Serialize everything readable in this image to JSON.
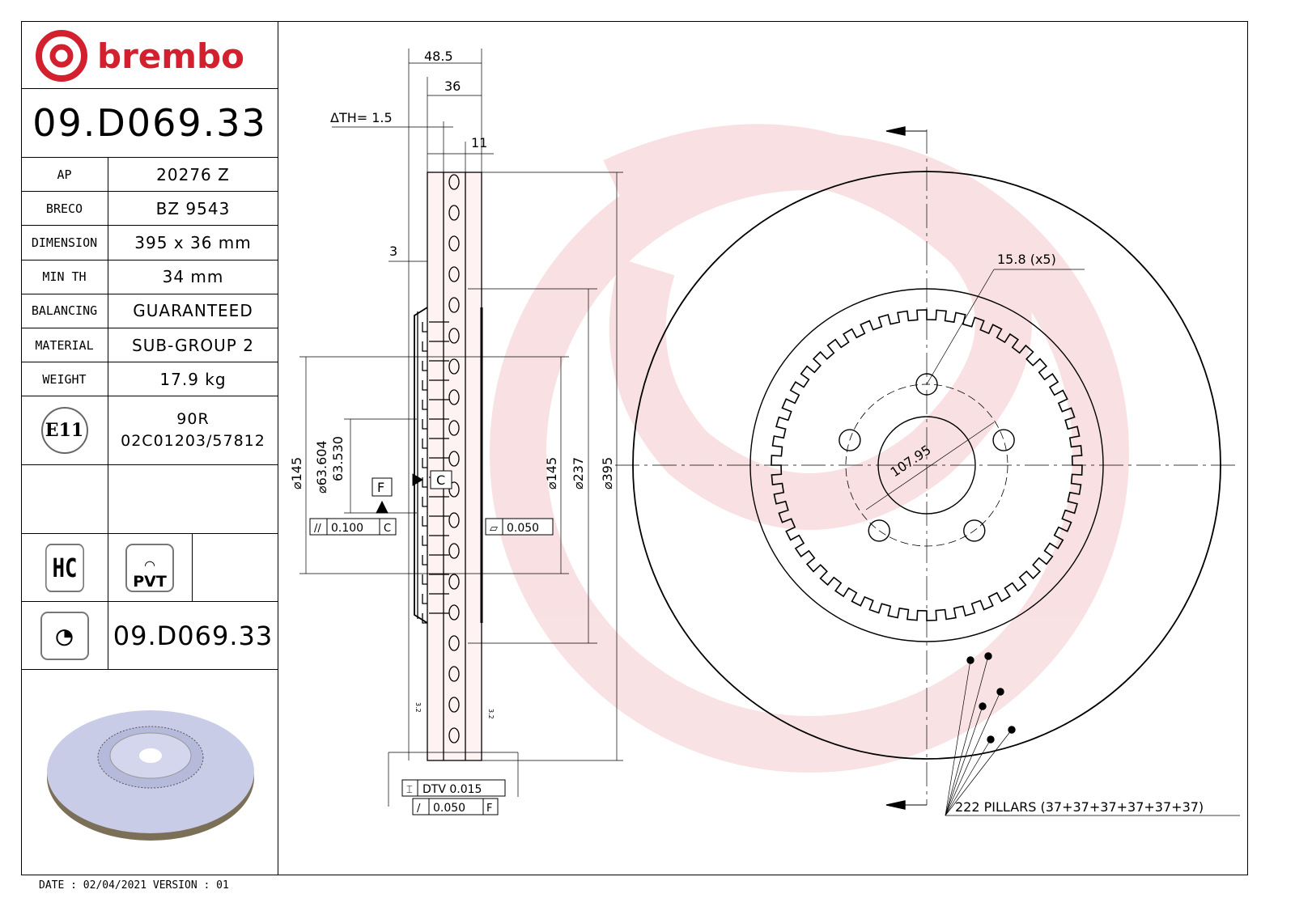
{
  "brand": {
    "name": "brembo",
    "color": "#d3202f"
  },
  "part_number": "09.D069.33",
  "specs": [
    {
      "label": "AP",
      "value": "20276 Z"
    },
    {
      "label": "BRECO",
      "value": "BZ 9543"
    },
    {
      "label": "DIMENSION",
      "value": "395 x 36 mm"
    },
    {
      "label": "MIN TH",
      "value": "34 mm"
    },
    {
      "label": "BALANCING",
      "value": "GUARANTEED"
    },
    {
      "label": "MATERIAL",
      "value": "SUB-GROUP 2"
    },
    {
      "label": "WEIGHT",
      "value": "17.9 kg"
    }
  ],
  "homologation": {
    "mark": "E11",
    "line1": "90R",
    "line2": "02C01203/57812"
  },
  "badges": {
    "hc": "HC",
    "pvt": "PVT"
  },
  "bottom_part_number": "09.D069.33",
  "footer": "DATE : 02/04/2021 VERSION : 01",
  "drawing": {
    "dim_overall_width": "48.5",
    "dim_thickness": "36",
    "delta_th": "ΔTH= 1.5",
    "dim_11": "11",
    "dim_3": "3",
    "dia_145_left": "⌀145",
    "dia_63_604": "⌀63.604",
    "dia_63_530": "63.530",
    "dia_145_right": "⌀145",
    "dia_237": "⌀237",
    "dia_395": "⌀395",
    "datum_f": "F",
    "datum_c": "C",
    "parallelism_value": "0.100",
    "parallelism_datum": "C",
    "flatness_value": "0.050",
    "dtv": "DTV 0.015",
    "runout_value": "0.050",
    "runout_datum": "F",
    "roughness_left": "3.2",
    "roughness_right": "3.2",
    "bolt_hole": "15.8 (x5)",
    "pcd": "107.95",
    "pillars": "222 PILLARS (37+37+37+37+37+37)"
  }
}
